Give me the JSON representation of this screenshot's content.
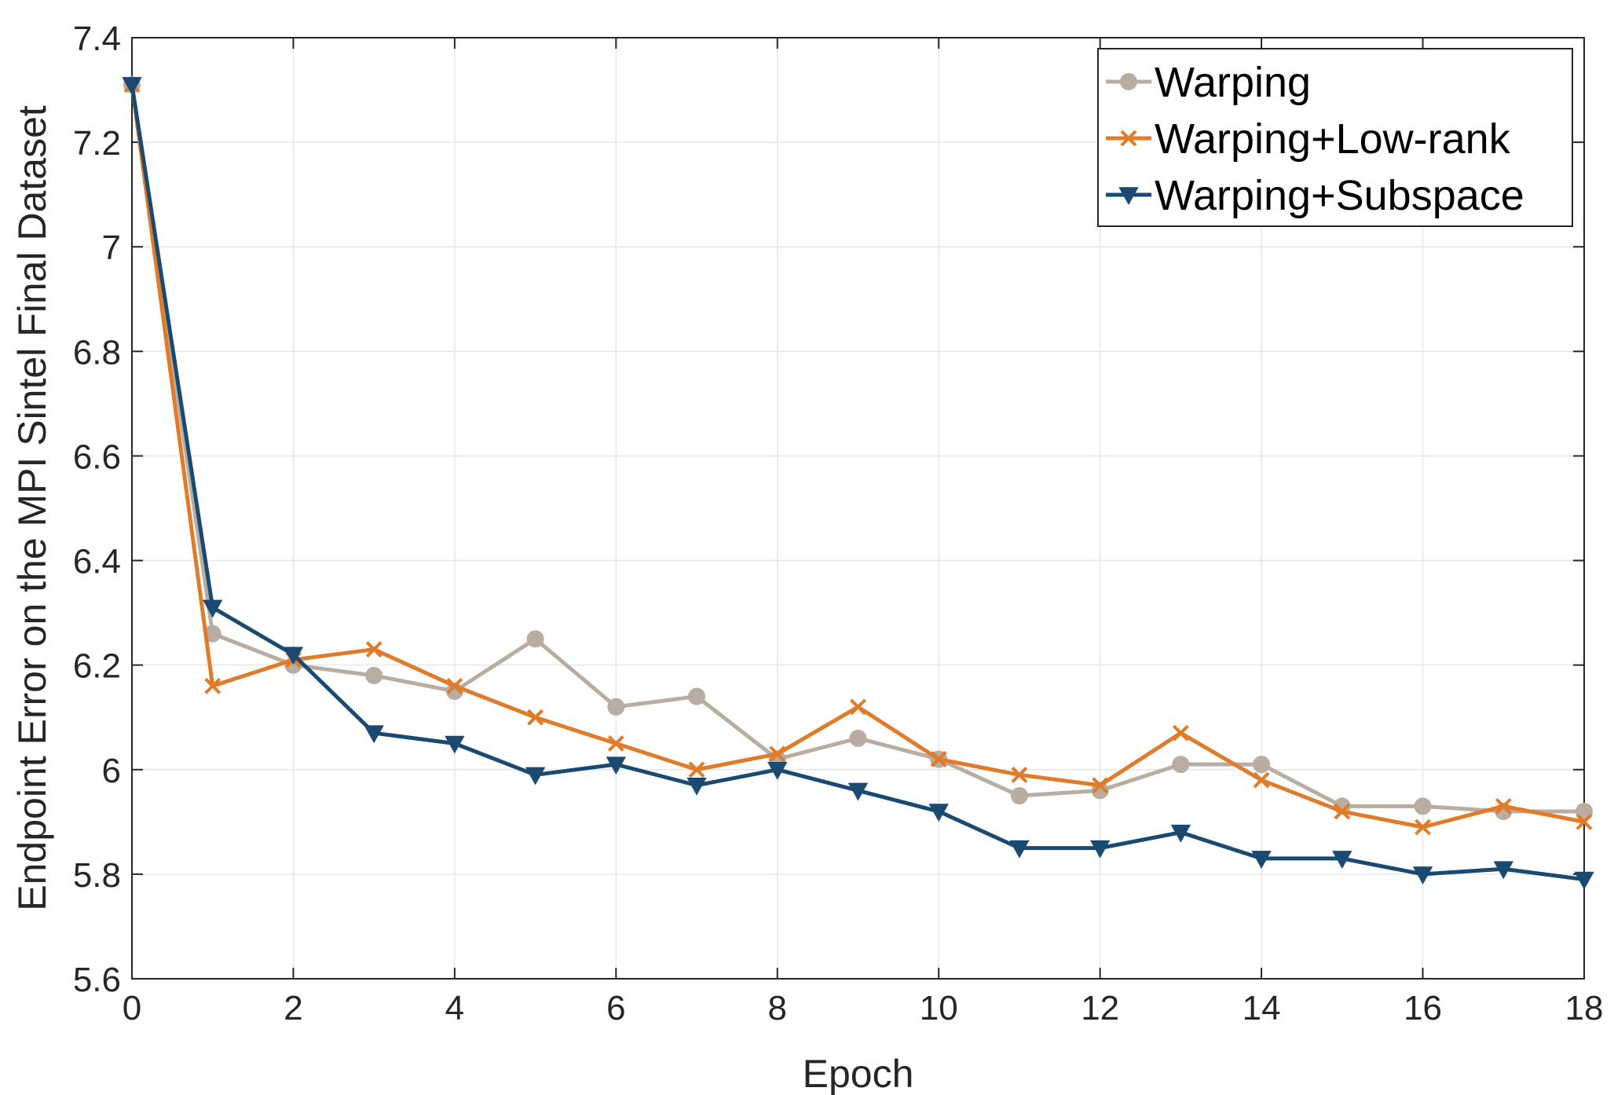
{
  "chart_data": {
    "type": "line",
    "xlabel": "Epoch",
    "ylabel": "Endpoint Error on the MPI Sintel Final Dataset",
    "xlim": [
      0,
      18
    ],
    "ylim": [
      5.6,
      7.4
    ],
    "xticks": [
      0,
      2,
      4,
      6,
      8,
      10,
      12,
      14,
      16,
      18
    ],
    "yticks": [
      5.6,
      5.8,
      6,
      6.2,
      6.4,
      6.6,
      6.8,
      7,
      7.2,
      7.4
    ],
    "ytick_labels": [
      "5.6",
      "5.8",
      "6",
      "6.2",
      "6.4",
      "6.6",
      "6.8",
      "7",
      "7.2",
      "7.4"
    ],
    "grid": true,
    "legend_position": "top-right",
    "x": [
      0,
      1,
      2,
      3,
      4,
      5,
      6,
      7,
      8,
      9,
      10,
      11,
      12,
      13,
      14,
      15,
      16,
      17,
      18
    ],
    "series": [
      {
        "name": "Warping",
        "color": "#b8ada0",
        "marker": "circle",
        "values": [
          7.31,
          6.26,
          6.2,
          6.18,
          6.15,
          6.25,
          6.12,
          6.14,
          6.02,
          6.06,
          6.02,
          5.95,
          5.96,
          6.01,
          6.01,
          5.93,
          5.93,
          5.92,
          5.92
        ]
      },
      {
        "name": "Warping+Low-rank",
        "color": "#e07b2a",
        "marker": "x",
        "values": [
          7.31,
          6.16,
          6.21,
          6.23,
          6.16,
          6.1,
          6.05,
          6.0,
          6.03,
          6.12,
          6.02,
          5.99,
          5.97,
          6.07,
          5.98,
          5.92,
          5.89,
          5.93,
          5.9
        ]
      },
      {
        "name": "Warping+Subspace",
        "color": "#1a4a72",
        "marker": "triangle-down",
        "values": [
          7.31,
          6.31,
          6.22,
          6.07,
          6.05,
          5.99,
          6.01,
          5.97,
          6.0,
          5.96,
          5.92,
          5.85,
          5.85,
          5.88,
          5.83,
          5.83,
          5.8,
          5.81,
          5.79
        ]
      }
    ]
  }
}
